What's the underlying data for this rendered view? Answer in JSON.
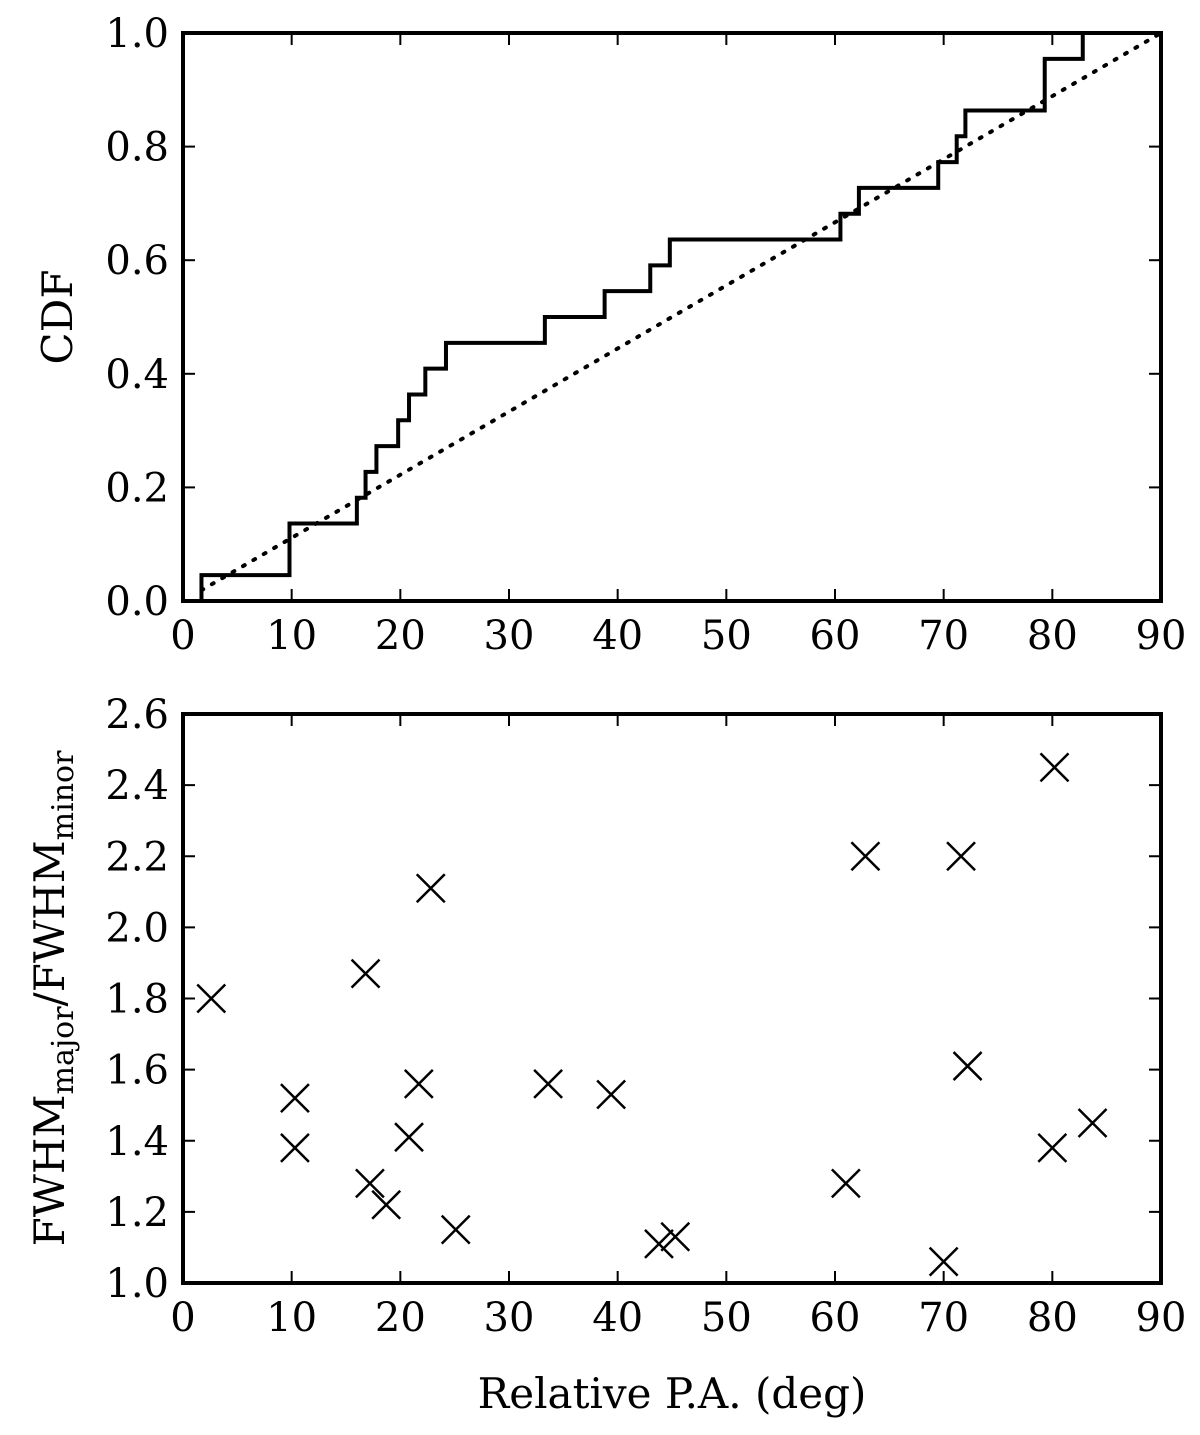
{
  "chart_data": [
    {
      "type": "line",
      "title": "",
      "xlabel": "",
      "ylabel": "CDF",
      "xlim": [
        0,
        90
      ],
      "ylim": [
        0.0,
        1.0
      ],
      "xticks": [
        "0",
        "10",
        "20",
        "30",
        "40",
        "50",
        "60",
        "70",
        "80",
        "90"
      ],
      "yticks": [
        "0.0",
        "0.2",
        "0.4",
        "0.6",
        "0.8",
        "1.0"
      ],
      "grid": false,
      "series": [
        {
          "style": "solid-step",
          "x": [
            1.7,
            9.8,
            16.0,
            16.8,
            17.8,
            19.8,
            20.8,
            22.3,
            24.2,
            33.3,
            38.8,
            43.0,
            44.8,
            60.5,
            62.2,
            69.5,
            71.2,
            72.0,
            79.3,
            82.8
          ],
          "y": [
            0.0455,
            0.1364,
            0.1818,
            0.2273,
            0.2727,
            0.3182,
            0.3636,
            0.4091,
            0.4545,
            0.5,
            0.5455,
            0.5909,
            0.6364,
            0.6818,
            0.7273,
            0.7727,
            0.8182,
            0.8636,
            0.9545,
            1.0
          ]
        },
        {
          "style": "dotted",
          "x": [
            1.7,
            90
          ],
          "y": [
            0.019,
            1.0
          ]
        }
      ]
    },
    {
      "type": "scatter",
      "title": "",
      "xlabel": "Relative P.A. (deg)",
      "ylabel_base1": "FWHM",
      "ylabel_sub1": "major",
      "ylabel_sep": "/FWHM",
      "ylabel_sub2": "minor",
      "xlim": [
        0,
        90
      ],
      "ylim": [
        1.0,
        2.6
      ],
      "xticks": [
        "0",
        "10",
        "20",
        "30",
        "40",
        "50",
        "60",
        "70",
        "80",
        "90"
      ],
      "yticks": [
        "1.0",
        "1.2",
        "1.4",
        "1.6",
        "1.8",
        "2.0",
        "2.2",
        "2.4",
        "2.6"
      ],
      "grid": false,
      "marker": "x",
      "points": [
        {
          "x": 2.6,
          "y": 1.8
        },
        {
          "x": 10.3,
          "y": 1.52
        },
        {
          "x": 10.3,
          "y": 1.38
        },
        {
          "x": 16.8,
          "y": 1.87
        },
        {
          "x": 17.2,
          "y": 1.28
        },
        {
          "x": 18.7,
          "y": 1.22
        },
        {
          "x": 20.8,
          "y": 1.41
        },
        {
          "x": 21.7,
          "y": 1.56
        },
        {
          "x": 22.8,
          "y": 2.11
        },
        {
          "x": 25.1,
          "y": 1.15
        },
        {
          "x": 33.6,
          "y": 1.56
        },
        {
          "x": 39.4,
          "y": 1.53
        },
        {
          "x": 43.8,
          "y": 1.11
        },
        {
          "x": 45.3,
          "y": 1.13
        },
        {
          "x": 61.0,
          "y": 1.28
        },
        {
          "x": 62.8,
          "y": 2.2
        },
        {
          "x": 70.0,
          "y": 1.06
        },
        {
          "x": 71.6,
          "y": 2.2
        },
        {
          "x": 72.2,
          "y": 1.61
        },
        {
          "x": 80.0,
          "y": 1.38
        },
        {
          "x": 80.2,
          "y": 2.45
        },
        {
          "x": 83.7,
          "y": 1.45
        }
      ]
    }
  ]
}
